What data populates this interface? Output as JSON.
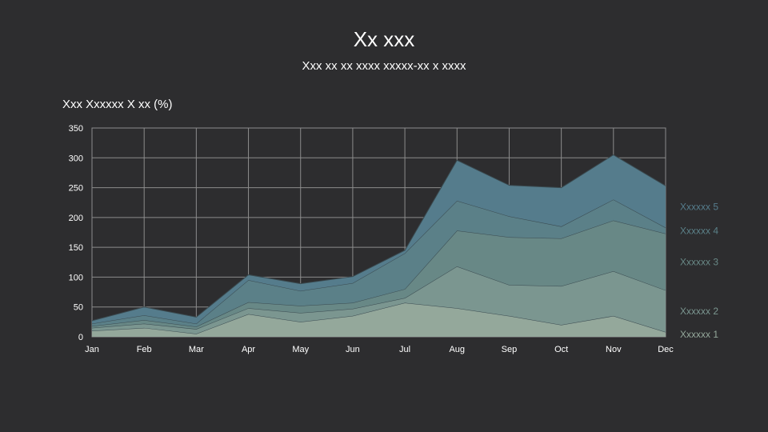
{
  "chart_data": {
    "type": "area",
    "stacked": true,
    "title": "Xx xxx",
    "subtitle": "Xxx xx xx xxxx xxxxx-xx x xxxx",
    "ylabel": "Xxx Xxxxxx X xx (%)",
    "xlabel": "",
    "ylim": [
      0,
      350
    ],
    "yticks": [
      0,
      50,
      100,
      150,
      200,
      250,
      300,
      350
    ],
    "grid": true,
    "legend": "right",
    "categories": [
      "Jan",
      "Feb",
      "Mar",
      "Apr",
      "May",
      "Jun",
      "Jul",
      "Aug",
      "Sep",
      "Oct",
      "Nov",
      "Dec"
    ],
    "series": [
      {
        "name": "Xxxxxx 1",
        "color": "#94a89b",
        "values": [
          10,
          15,
          5,
          38,
          25,
          35,
          57,
          48,
          35,
          20,
          35,
          8
        ]
      },
      {
        "name": "Xxxxxx 2",
        "color": "#7b9690",
        "values": [
          5,
          7,
          8,
          10,
          15,
          12,
          8,
          70,
          52,
          65,
          75,
          70
        ]
      },
      {
        "name": "Xxxxxx 3",
        "color": "#688886",
        "values": [
          3,
          6,
          4,
          10,
          12,
          10,
          15,
          60,
          80,
          80,
          85,
          95
        ]
      },
      {
        "name": "Xxxxxx 4",
        "color": "#5b8088",
        "values": [
          4,
          8,
          5,
          37,
          25,
          33,
          60,
          50,
          35,
          20,
          35,
          10
        ]
      },
      {
        "name": "Xxxxxx 5",
        "color": "#557c8c",
        "values": [
          5,
          14,
          11,
          9,
          12,
          11,
          5,
          68,
          52,
          65,
          75,
          70
        ]
      }
    ]
  }
}
